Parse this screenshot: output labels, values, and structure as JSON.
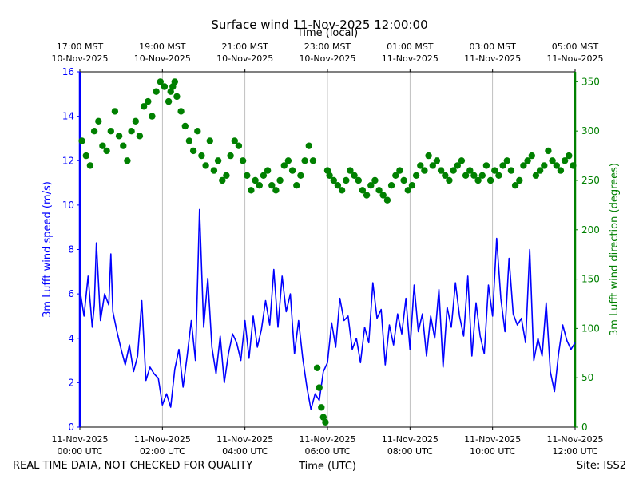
{
  "title": "Surface wind 11-Nov-2025 12:00:00",
  "top_axis_label": "Time (local)",
  "bottom_axis_label": "Time (UTC)",
  "quality_note": "REAL TIME DATA, NOT CHECKED FOR QUALITY",
  "site": "Site: ISS2",
  "colors": {
    "speed": "#0000ff",
    "direction": "#008000",
    "grid": "#b0b0b0"
  },
  "chart_data": {
    "type": "line",
    "title": "Surface wind 11-Nov-2025 12:00:00",
    "xlabel": "Time (UTC)",
    "x2label": "Time (local)",
    "ylabel": "3m Lufft wind speed (m/s)",
    "y2label": "3m Lufft wind direction (degrees)",
    "x_range_hours_utc": [
      0,
      12
    ],
    "ylim": [
      0,
      16
    ],
    "y2lim": [
      0,
      360
    ],
    "grid": "vertical",
    "bottom_ticks": [
      {
        "hour": 0,
        "line1": "11-Nov-2025",
        "line2": "00:00 UTC"
      },
      {
        "hour": 2,
        "line1": "11-Nov-2025",
        "line2": "02:00 UTC"
      },
      {
        "hour": 4,
        "line1": "11-Nov-2025",
        "line2": "04:00 UTC"
      },
      {
        "hour": 6,
        "line1": "11-Nov-2025",
        "line2": "06:00 UTC"
      },
      {
        "hour": 8,
        "line1": "11-Nov-2025",
        "line2": "08:00 UTC"
      },
      {
        "hour": 10,
        "line1": "11-Nov-2025",
        "line2": "10:00 UTC"
      },
      {
        "hour": 12,
        "line1": "11-Nov-2025",
        "line2": "12:00 UTC"
      }
    ],
    "top_ticks": [
      {
        "hour": 0,
        "line1": "17:00 MST",
        "line2": "10-Nov-2025"
      },
      {
        "hour": 2,
        "line1": "19:00 MST",
        "line2": "10-Nov-2025"
      },
      {
        "hour": 4,
        "line1": "21:00 MST",
        "line2": "10-Nov-2025"
      },
      {
        "hour": 6,
        "line1": "23:00 MST",
        "line2": "10-Nov-2025"
      },
      {
        "hour": 8,
        "line1": "01:00 MST",
        "line2": "11-Nov-2025"
      },
      {
        "hour": 10,
        "line1": "03:00 MST",
        "line2": "11-Nov-2025"
      },
      {
        "hour": 12,
        "line1": "05:00 MST",
        "line2": "11-Nov-2025"
      }
    ],
    "y_ticks": [
      0,
      2,
      4,
      6,
      8,
      10,
      12,
      14,
      16
    ],
    "y2_ticks": [
      0,
      50,
      100,
      150,
      200,
      250,
      300,
      350
    ],
    "series": [
      {
        "name": "3m Lufft wind speed (m/s)",
        "axis": "left",
        "style": "line",
        "x": [
          0,
          0.1,
          0.2,
          0.3,
          0.35,
          0.4,
          0.5,
          0.6,
          0.7,
          0.75,
          0.8,
          0.9,
          1.0,
          1.1,
          1.2,
          1.3,
          1.4,
          1.5,
          1.6,
          1.7,
          1.8,
          1.9,
          2.0,
          2.1,
          2.2,
          2.3,
          2.4,
          2.5,
          2.6,
          2.7,
          2.8,
          2.9,
          3.0,
          3.1,
          3.2,
          3.3,
          3.4,
          3.5,
          3.6,
          3.7,
          3.8,
          3.9,
          4.0,
          4.1,
          4.2,
          4.3,
          4.4,
          4.5,
          4.6,
          4.7,
          4.8,
          4.9,
          5.0,
          5.1,
          5.2,
          5.3,
          5.4,
          5.5,
          5.6,
          5.7,
          5.8,
          5.9,
          6.0,
          6.1,
          6.2,
          6.3,
          6.4,
          6.5,
          6.6,
          6.7,
          6.8,
          6.9,
          7.0,
          7.1,
          7.2,
          7.3,
          7.4,
          7.5,
          7.6,
          7.7,
          7.8,
          7.9,
          8.0,
          8.1,
          8.2,
          8.3,
          8.4,
          8.5,
          8.6,
          8.7,
          8.8,
          8.9,
          9.0,
          9.1,
          9.2,
          9.3,
          9.4,
          9.5,
          9.6,
          9.7,
          9.8,
          9.9,
          10.0,
          10.1,
          10.2,
          10.3,
          10.4,
          10.5,
          10.6,
          10.7,
          10.8,
          10.9,
          11.0,
          11.1,
          11.2,
          11.3,
          11.4,
          11.5,
          11.6,
          11.7,
          11.8,
          11.9,
          12.0
        ],
        "values": [
          6.2,
          5.0,
          6.8,
          4.5,
          5.5,
          8.3,
          4.8,
          6.0,
          5.5,
          7.8,
          5.2,
          4.3,
          3.5,
          2.8,
          3.7,
          2.5,
          3.2,
          5.7,
          2.1,
          2.7,
          2.4,
          2.2,
          1.0,
          1.5,
          0.9,
          2.6,
          3.5,
          1.8,
          3.2,
          4.8,
          3.0,
          9.8,
          4.5,
          6.7,
          3.6,
          2.4,
          4.1,
          2.0,
          3.3,
          4.2,
          3.8,
          3.0,
          4.8,
          3.1,
          5.0,
          3.6,
          4.4,
          5.7,
          4.6,
          7.1,
          4.5,
          6.8,
          5.2,
          6.0,
          3.3,
          4.8,
          3.1,
          1.8,
          0.8,
          1.5,
          1.2,
          2.5,
          2.9,
          4.7,
          3.6,
          5.8,
          4.8,
          5.0,
          3.5,
          4.0,
          2.9,
          4.5,
          3.8,
          6.5,
          4.9,
          5.3,
          2.8,
          4.6,
          3.7,
          5.1,
          4.2,
          5.8,
          3.5,
          6.4,
          4.3,
          5.1,
          3.2,
          5.0,
          4.0,
          6.2,
          2.7,
          5.4,
          4.5,
          6.5,
          5.0,
          4.1,
          6.8,
          3.2,
          5.6,
          4.1,
          3.3,
          6.4,
          5.0,
          8.5,
          5.8,
          4.3,
          7.6,
          5.1,
          4.6,
          4.9,
          3.8,
          8.0,
          3.0,
          4.0,
          3.2,
          5.6,
          2.5,
          1.6,
          3.3,
          4.6,
          3.9,
          3.5,
          3.8
        ]
      },
      {
        "name": "3m Lufft wind direction (degrees)",
        "axis": "right",
        "style": "scatter",
        "x": [
          0.05,
          0.15,
          0.25,
          0.35,
          0.45,
          0.55,
          0.65,
          0.75,
          0.85,
          0.95,
          1.05,
          1.15,
          1.25,
          1.35,
          1.45,
          1.55,
          1.65,
          1.75,
          1.85,
          1.95,
          2.05,
          2.15,
          2.2,
          2.25,
          2.3,
          2.35,
          2.45,
          2.55,
          2.65,
          2.75,
          2.85,
          2.95,
          3.05,
          3.15,
          3.25,
          3.35,
          3.45,
          3.55,
          3.65,
          3.75,
          3.85,
          3.95,
          4.05,
          4.15,
          4.25,
          4.35,
          4.45,
          4.55,
          4.65,
          4.75,
          4.85,
          4.95,
          5.05,
          5.15,
          5.25,
          5.35,
          5.45,
          5.55,
          5.65,
          5.75,
          5.8,
          5.85,
          5.9,
          5.95,
          6.0,
          6.05,
          6.15,
          6.25,
          6.35,
          6.45,
          6.55,
          6.65,
          6.75,
          6.85,
          6.95,
          7.05,
          7.15,
          7.25,
          7.35,
          7.45,
          7.55,
          7.65,
          7.75,
          7.85,
          7.95,
          8.05,
          8.15,
          8.25,
          8.35,
          8.45,
          8.55,
          8.65,
          8.75,
          8.85,
          8.95,
          9.05,
          9.15,
          9.25,
          9.35,
          9.45,
          9.55,
          9.65,
          9.75,
          9.85,
          9.95,
          10.05,
          10.15,
          10.25,
          10.35,
          10.45,
          10.55,
          10.65,
          10.75,
          10.85,
          10.95,
          11.05,
          11.15,
          11.25,
          11.35,
          11.45,
          11.55,
          11.65,
          11.75,
          11.85,
          11.95
        ],
        "values": [
          290,
          275,
          265,
          300,
          310,
          285,
          280,
          300,
          320,
          295,
          285,
          270,
          300,
          310,
          295,
          325,
          330,
          315,
          340,
          350,
          345,
          330,
          340,
          345,
          350,
          335,
          320,
          305,
          290,
          280,
          300,
          275,
          265,
          290,
          260,
          270,
          250,
          255,
          275,
          290,
          285,
          270,
          255,
          240,
          250,
          245,
          255,
          260,
          245,
          240,
          250,
          265,
          270,
          260,
          245,
          255,
          270,
          285,
          270,
          60,
          40,
          20,
          10,
          5,
          260,
          255,
          250,
          245,
          240,
          250,
          260,
          255,
          250,
          240,
          235,
          245,
          250,
          240,
          235,
          230,
          245,
          255,
          260,
          250,
          240,
          245,
          255,
          265,
          260,
          275,
          265,
          270,
          260,
          255,
          250,
          260,
          265,
          270,
          255,
          260,
          255,
          250,
          255,
          265,
          250,
          260,
          255,
          265,
          270,
          260,
          245,
          250,
          265,
          270,
          275,
          255,
          260,
          265,
          280,
          270,
          265,
          260,
          270,
          275,
          265
        ]
      }
    ]
  }
}
